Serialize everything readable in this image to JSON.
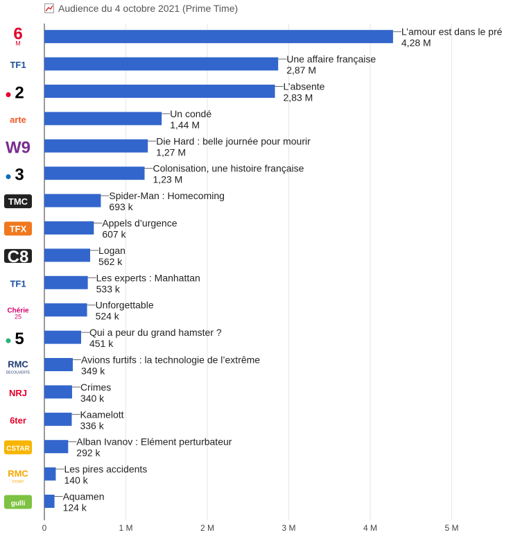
{
  "chart_data": {
    "type": "bar",
    "orientation": "horizontal",
    "title": "Audience du 4 octobre 2021 (Prime Time)",
    "xlim": [
      0,
      5.8
    ],
    "x_ticks": [
      {
        "v": 0,
        "label": "0"
      },
      {
        "v": 1,
        "label": "1 M"
      },
      {
        "v": 2,
        "label": "2 M"
      },
      {
        "v": 3,
        "label": "3 M"
      },
      {
        "v": 4,
        "label": "4 M"
      },
      {
        "v": 5,
        "label": "5 M"
      }
    ],
    "grid": true,
    "bar_color": "#3366cc",
    "bars": [
      {
        "channel": "M6",
        "program": "L’amour est dans le pré",
        "value": 4.28,
        "value_label": "4,28 M"
      },
      {
        "channel": "TF1",
        "program": "Une affaire française",
        "value": 2.87,
        "value_label": "2,87 M"
      },
      {
        "channel": "France 2",
        "program": "L’absente",
        "value": 2.83,
        "value_label": "2,83 M"
      },
      {
        "channel": "Arte",
        "program": "Un condé",
        "value": 1.44,
        "value_label": "1,44 M"
      },
      {
        "channel": "W9",
        "program": "Die Hard : belle journée pour mourir",
        "value": 1.27,
        "value_label": "1,27 M"
      },
      {
        "channel": "France 3",
        "program": "Colonisation, une histoire française",
        "value": 1.23,
        "value_label": "1,23 M"
      },
      {
        "channel": "TMC",
        "program": "Spider-Man : Homecoming",
        "value": 0.693,
        "value_label": "693 k"
      },
      {
        "channel": "TFX",
        "program": "Appels d’urgence",
        "value": 0.607,
        "value_label": "607 k"
      },
      {
        "channel": "C8",
        "program": "Logan",
        "value": 0.562,
        "value_label": "562 k"
      },
      {
        "channel": "TF1 Séries Films",
        "program": "Les experts : Manhattan",
        "value": 0.533,
        "value_label": "533 k"
      },
      {
        "channel": "Chérie 25",
        "program": "Unforgettable",
        "value": 0.524,
        "value_label": "524 k"
      },
      {
        "channel": "France 5",
        "program": "Qui a peur du grand hamster ?",
        "value": 0.451,
        "value_label": "451 k"
      },
      {
        "channel": "RMC Découverte",
        "program": "Avions furtifs : la technologie de l’extrême",
        "value": 0.349,
        "value_label": "349 k"
      },
      {
        "channel": "NRJ 12",
        "program": "Crimes",
        "value": 0.34,
        "value_label": "340 k"
      },
      {
        "channel": "6ter",
        "program": "Kaamelott",
        "value": 0.336,
        "value_label": "336 k"
      },
      {
        "channel": "CStar",
        "program": "Alban Ivanov : Elément perturbateur",
        "value": 0.292,
        "value_label": "292 k"
      },
      {
        "channel": "RMC Story",
        "program": "Les pires accidents",
        "value": 0.14,
        "value_label": "140 k"
      },
      {
        "channel": "Gulli",
        "program": "Aquamen",
        "value": 0.124,
        "value_label": "124 k"
      }
    ]
  },
  "logos": [
    {
      "key": "M6",
      "text": "6",
      "sub": "M",
      "color": "#e4002b"
    },
    {
      "key": "TF1",
      "text": "TF1",
      "color": "#1d4ea0"
    },
    {
      "key": "France 2",
      "text": "2",
      "dot": "#e4002b",
      "color": "#000000"
    },
    {
      "key": "Arte",
      "text": "arte",
      "color": "#f05a28"
    },
    {
      "key": "W9",
      "text": "W9",
      "color": "#7a2d8f"
    },
    {
      "key": "France 3",
      "text": "3",
      "dot": "#0a6ebd",
      "color": "#000000"
    },
    {
      "key": "TMC",
      "text": "TMC",
      "color": "#ffffff",
      "bg": "#222222"
    },
    {
      "key": "TFX",
      "text": "TFX",
      "color": "#ffffff",
      "bg": "#f0781e"
    },
    {
      "key": "C8",
      "text": "C8",
      "color": "#ffffff",
      "bg": "#222222"
    },
    {
      "key": "TF1 Séries Films",
      "text": "TF1",
      "color": "#1d4ea0"
    },
    {
      "key": "Chérie 25",
      "text": "Chérie",
      "sub": "25",
      "color": "#d6006e"
    },
    {
      "key": "France 5",
      "text": "5",
      "dot": "#2ab27b",
      "color": "#000000"
    },
    {
      "key": "RMC Découverte",
      "text": "RMC",
      "sub": "DÉCOUVERTE",
      "color": "#1e3a6e"
    },
    {
      "key": "NRJ 12",
      "text": "NRJ",
      "color": "#e4002b"
    },
    {
      "key": "6ter",
      "text": "6ter",
      "color": "#e4002b"
    },
    {
      "key": "CStar",
      "text": "CSTAR",
      "color": "#ffffff",
      "bg": "#f7b500"
    },
    {
      "key": "RMC Story",
      "text": "RMC",
      "sub": "STORY",
      "color": "#f7a600"
    },
    {
      "key": "Gulli",
      "text": "gulli",
      "color": "#ffffff",
      "bg": "#7dc242"
    }
  ]
}
